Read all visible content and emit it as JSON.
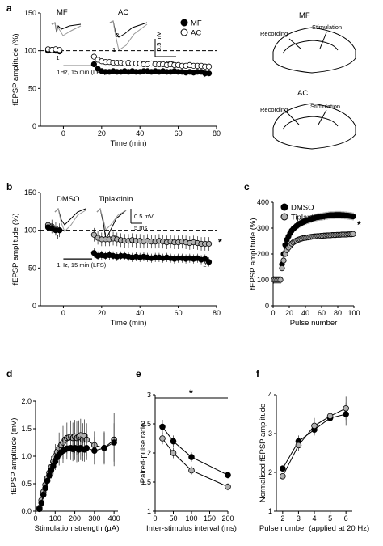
{
  "panels": [
    {
      "id": "a",
      "label": "a"
    },
    {
      "id": "b",
      "label": "b"
    },
    {
      "id": "c",
      "label": "c"
    },
    {
      "id": "d",
      "label": "d"
    },
    {
      "id": "e",
      "label": "e"
    },
    {
      "id": "f",
      "label": "f"
    }
  ],
  "trace_labels": {
    "a": [
      "MF",
      "AC"
    ],
    "b": [
      "DMSO",
      "Tiplaxtinin"
    ],
    "marks_1": "1",
    "marks_2": "2"
  },
  "scalebars": {
    "a": {
      "v": "0.5 mV",
      "t": "10 ms"
    },
    "b": {
      "v": "0.5 mV",
      "t": "5 ms"
    }
  },
  "lfs_label": "1Hz, 15 min (LFS)",
  "schematics": [
    {
      "title": "MF",
      "recording": "Recording",
      "stimulation": "Stimulation"
    },
    {
      "title": "AC",
      "recording": "Recording",
      "stimulation": "Stimulation"
    }
  ],
  "colors": {
    "filled": "#000000",
    "open": "#ffffff",
    "grey": "#b0b0b0"
  },
  "chart_data": [
    {
      "id": "a",
      "type": "scatter",
      "xlabel": "Time (min)",
      "ylabel": "fEPSP amplitude (%)",
      "xlim": [
        -12,
        80
      ],
      "ylim": [
        0,
        150
      ],
      "xticks": [
        0,
        20,
        40,
        60,
        80
      ],
      "yticks": [
        0,
        50,
        100,
        150
      ],
      "baseline": 100,
      "series": [
        {
          "name": "MF",
          "fill": "filled",
          "x": [
            -8,
            -6,
            -4,
            -2,
            16,
            18,
            20,
            22,
            24,
            26,
            28,
            30,
            32,
            34,
            36,
            38,
            40,
            42,
            44,
            46,
            48,
            50,
            52,
            54,
            56,
            58,
            60,
            62,
            64,
            66,
            68,
            70,
            72,
            74,
            76
          ],
          "y": [
            100,
            101,
            100,
            99,
            82,
            76,
            73,
            72,
            72,
            73,
            72,
            72,
            73,
            72,
            73,
            72,
            72,
            73,
            73,
            72,
            73,
            72,
            73,
            72,
            72,
            73,
            72,
            72,
            71,
            72,
            71,
            72,
            72,
            70,
            70
          ],
          "err": 3
        },
        {
          "name": "AC",
          "fill": "open",
          "x": [
            -8,
            -6,
            -4,
            -2,
            16,
            18,
            20,
            22,
            24,
            26,
            28,
            30,
            32,
            34,
            36,
            38,
            40,
            42,
            44,
            46,
            48,
            50,
            52,
            54,
            56,
            58,
            60,
            62,
            64,
            66,
            68,
            70,
            72,
            74,
            76
          ],
          "y": [
            102,
            101,
            102,
            101,
            92,
            88,
            86,
            85,
            85,
            84,
            84,
            84,
            83,
            84,
            83,
            83,
            83,
            82,
            82,
            83,
            82,
            82,
            82,
            81,
            82,
            81,
            81,
            80,
            80,
            81,
            80,
            80,
            80,
            79,
            79
          ],
          "err": 3
        }
      ]
    },
    {
      "id": "b",
      "type": "scatter",
      "xlabel": "Time (min)",
      "ylabel": "fEPSP amplitude (%)",
      "xlim": [
        -12,
        80
      ],
      "ylim": [
        0,
        150
      ],
      "xticks": [
        0,
        20,
        40,
        60,
        80
      ],
      "yticks": [
        0,
        50,
        100,
        150
      ],
      "baseline": 100,
      "annotation": "*",
      "series": [
        {
          "name": "Tiplaxtinin",
          "fill": "grey",
          "x": [
            -8,
            -6,
            -4,
            -2,
            16,
            18,
            20,
            22,
            24,
            26,
            28,
            30,
            32,
            34,
            36,
            38,
            40,
            42,
            44,
            46,
            48,
            50,
            52,
            54,
            56,
            58,
            60,
            62,
            64,
            66,
            68,
            70,
            72,
            74,
            76
          ],
          "y": [
            107,
            105,
            102,
            100,
            94,
            90,
            88,
            88,
            88,
            89,
            88,
            87,
            86,
            86,
            87,
            86,
            86,
            85,
            86,
            85,
            85,
            86,
            85,
            84,
            85,
            84,
            84,
            85,
            84,
            83,
            84,
            83,
            82,
            82,
            82
          ],
          "err": 9
        },
        {
          "name": "DMSO",
          "fill": "filled",
          "x": [
            -8,
            -6,
            -4,
            -2,
            16,
            18,
            20,
            22,
            24,
            26,
            28,
            30,
            32,
            34,
            36,
            38,
            40,
            42,
            44,
            46,
            48,
            50,
            52,
            54,
            56,
            58,
            60,
            62,
            64,
            66,
            68,
            70,
            72,
            74,
            76
          ],
          "y": [
            104,
            103,
            100,
            100,
            70,
            66,
            67,
            66,
            67,
            66,
            65,
            66,
            66,
            65,
            64,
            65,
            64,
            65,
            64,
            63,
            64,
            64,
            63,
            64,
            63,
            62,
            63,
            63,
            62,
            63,
            62,
            63,
            61,
            62,
            58
          ],
          "err": 6
        }
      ]
    },
    {
      "id": "c",
      "type": "scatter",
      "xlabel": "Pulse number",
      "ylabel": "fEPSP amplitude (%)",
      "xlim": [
        0,
        100
      ],
      "ylim": [
        0,
        400
      ],
      "xticks": [
        0,
        20,
        40,
        60,
        80,
        100
      ],
      "yticks": [
        0,
        100,
        200,
        300,
        400
      ],
      "annotation": "*",
      "legend": "top-left",
      "series": [
        {
          "name": "DMSO",
          "fill": "filled",
          "x": [
            1,
            3,
            5,
            7,
            9,
            11,
            13,
            15,
            17,
            19,
            21,
            23,
            25,
            27,
            29,
            31,
            33,
            35,
            37,
            39,
            41,
            43,
            45,
            47,
            49,
            51,
            53,
            55,
            57,
            59,
            61,
            63,
            65,
            67,
            69,
            71,
            73,
            75,
            77,
            79,
            81,
            83,
            85,
            87,
            89,
            91,
            93,
            95,
            97,
            99
          ],
          "y": [
            100,
            100,
            100,
            100,
            100,
            160,
            200,
            235,
            255,
            268,
            280,
            290,
            297,
            303,
            308,
            313,
            317,
            320,
            323,
            326,
            329,
            331,
            333,
            335,
            337,
            339,
            341,
            342,
            343,
            344,
            345,
            346,
            347,
            348,
            349,
            350,
            350,
            350,
            351,
            351,
            351,
            351,
            350,
            350,
            349,
            349,
            348,
            347,
            346,
            345
          ],
          "err": 15
        },
        {
          "name": "Tiplaxtinin",
          "fill": "grey",
          "x": [
            1,
            3,
            5,
            7,
            9,
            11,
            13,
            15,
            17,
            19,
            21,
            23,
            25,
            27,
            29,
            31,
            33,
            35,
            37,
            39,
            41,
            43,
            45,
            47,
            49,
            51,
            53,
            55,
            57,
            59,
            61,
            63,
            65,
            67,
            69,
            71,
            73,
            75,
            77,
            79,
            81,
            83,
            85,
            87,
            89,
            91,
            93,
            95,
            97,
            99
          ],
          "y": [
            100,
            100,
            100,
            100,
            100,
            145,
            175,
            200,
            215,
            225,
            233,
            240,
            245,
            249,
            252,
            255,
            257,
            259,
            261,
            262,
            263,
            264,
            265,
            266,
            267,
            268,
            268,
            269,
            269,
            270,
            270,
            271,
            271,
            272,
            272,
            272,
            273,
            273,
            273,
            274,
            274,
            274,
            275,
            275,
            275,
            275,
            276,
            276,
            276,
            277
          ],
          "err": 10
        }
      ]
    },
    {
      "id": "d",
      "type": "line",
      "xlabel": "Stimulation strength (µA)",
      "ylabel": "fEPSP amplitude (mV)",
      "xlim": [
        0,
        420
      ],
      "ylim": [
        0,
        2
      ],
      "xticks": [
        0,
        100,
        200,
        300,
        400
      ],
      "yticks": [
        0.0,
        0.5,
        1.0,
        1.5,
        2.0
      ],
      "series": [
        {
          "name": "",
          "fill": "grey",
          "x": [
            20,
            30,
            40,
            50,
            60,
            70,
            80,
            90,
            100,
            110,
            120,
            130,
            140,
            150,
            160,
            170,
            180,
            190,
            200,
            210,
            220,
            230,
            240,
            250,
            260,
            300,
            350,
            400
          ],
          "y": [
            0.06,
            0.2,
            0.35,
            0.48,
            0.6,
            0.7,
            0.8,
            0.9,
            1.0,
            1.08,
            1.15,
            1.2,
            1.25,
            1.3,
            1.33,
            1.34,
            1.35,
            1.33,
            1.36,
            1.33,
            1.35,
            1.38,
            1.3,
            1.37,
            1.3,
            1.2,
            1.15,
            1.3
          ],
          "err": [
            0.05,
            0.08,
            0.12,
            0.12,
            0.13,
            0.15,
            0.2,
            0.2,
            0.22,
            0.25,
            0.28,
            0.25,
            0.3,
            0.25,
            0.28,
            0.3,
            0.3,
            0.28,
            0.3,
            0.3,
            0.3,
            0.3,
            0.3,
            0.3,
            0.3,
            0.25,
            0.28,
            0.48
          ]
        },
        {
          "name": "",
          "fill": "filled",
          "x": [
            20,
            30,
            40,
            50,
            60,
            70,
            80,
            90,
            100,
            110,
            120,
            130,
            140,
            150,
            160,
            170,
            180,
            190,
            200,
            210,
            220,
            230,
            240,
            250,
            260,
            300,
            350,
            400
          ],
          "y": [
            0.04,
            0.15,
            0.3,
            0.42,
            0.55,
            0.65,
            0.75,
            0.82,
            0.9,
            0.98,
            1.03,
            1.07,
            1.1,
            1.12,
            1.14,
            1.14,
            1.15,
            1.13,
            1.15,
            1.14,
            1.12,
            1.15,
            1.13,
            1.12,
            1.15,
            1.1,
            1.15,
            1.25
          ],
          "err": [
            0.03,
            0.06,
            0.08,
            0.1,
            0.12,
            0.12,
            0.15,
            0.15,
            0.15,
            0.18,
            0.2,
            0.2,
            0.22,
            0.22,
            0.2,
            0.22,
            0.22,
            0.22,
            0.22,
            0.25,
            0.22,
            0.22,
            0.22,
            0.22,
            0.22,
            0.25,
            0.3,
            0.35
          ]
        }
      ]
    },
    {
      "id": "e",
      "type": "line",
      "xlabel": "Inter-stimulus interval (ms)",
      "ylabel": "Paired-pulse ratio",
      "xlim": [
        0,
        200
      ],
      "ylim": [
        1,
        3
      ],
      "xticks": [
        0,
        50,
        100,
        150,
        200
      ],
      "yticks": [
        1,
        1.5,
        2,
        2.5,
        3
      ],
      "annotation": "*",
      "series": [
        {
          "name": "",
          "fill": "filled",
          "x": [
            20,
            50,
            100,
            200
          ],
          "y": [
            2.45,
            2.2,
            1.93,
            1.62
          ],
          "err": [
            0.12,
            0.1,
            0.08,
            0.06
          ]
        },
        {
          "name": "",
          "fill": "grey",
          "x": [
            20,
            50,
            100,
            200
          ],
          "y": [
            2.25,
            2.0,
            1.7,
            1.42
          ],
          "err": [
            0.1,
            0.09,
            0.07,
            0.06
          ]
        }
      ]
    },
    {
      "id": "f",
      "type": "line",
      "xlabel": "Pulse number (applied at 20 Hz)",
      "ylabel": "Normalised fEPSP amplitude",
      "xlim": [
        1.6,
        6.4
      ],
      "ylim": [
        1,
        4
      ],
      "xticks": [
        2,
        3,
        4,
        5,
        6
      ],
      "yticks": [
        1,
        2,
        3,
        4
      ],
      "series": [
        {
          "name": "",
          "fill": "filled",
          "x": [
            2,
            3,
            4,
            5,
            6
          ],
          "y": [
            2.1,
            2.8,
            3.1,
            3.4,
            3.5
          ],
          "err": [
            0.08,
            0.15,
            0.15,
            0.2,
            0.3
          ]
        },
        {
          "name": "",
          "fill": "grey",
          "x": [
            2,
            3,
            4,
            5,
            6
          ],
          "y": [
            1.9,
            2.7,
            3.2,
            3.45,
            3.65
          ],
          "err": [
            0.06,
            0.15,
            0.2,
            0.25,
            0.3
          ]
        }
      ]
    }
  ]
}
